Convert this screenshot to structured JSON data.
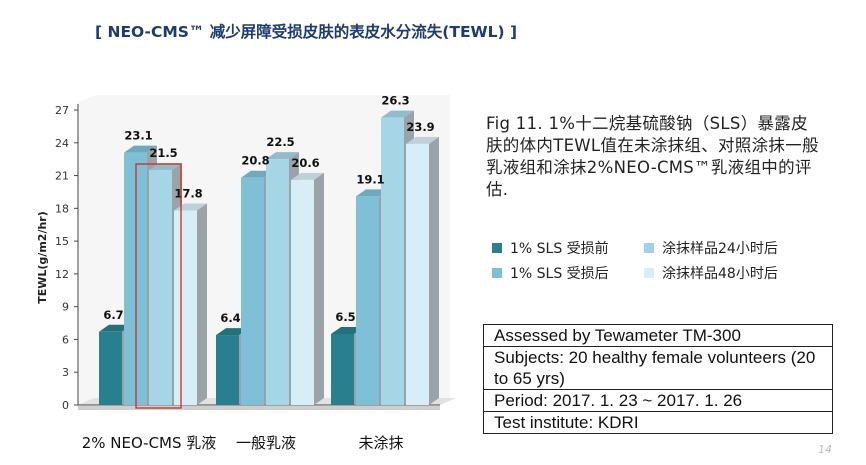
{
  "title": "[ NEO-CMS™ 减少屏障受损皮肤的表皮水分流失(TEWL) ]",
  "caption": "Fig 11. 1%十二烷基硫酸钠（SLS）暴露皮肤的体内TEWL值在未涂抹组、对照涂抹一般乳液组和涂抹2%NEO-CMS™乳液组中的评估.",
  "legend_colors": [
    "#2a7f8e",
    "#9fd3e2",
    "#7fc0d6",
    "#d8eef6"
  ],
  "chart_data": {
    "type": "bar",
    "categories": [
      "2% NEO-CMS 乳液",
      "一般乳液",
      "未涂抹"
    ],
    "series": [
      {
        "name": "1% SLS 受损前",
        "values": [
          6.7,
          6.4,
          6.5
        ],
        "value_labels": [
          "6.7",
          "6.4",
          "6.5"
        ],
        "color": "#2a7f8e"
      },
      {
        "name": "1% SLS 受损后",
        "values": [
          23.1,
          20.8,
          19.1
        ],
        "value_labels": [
          "23.1",
          "20.8",
          "19.1"
        ],
        "color": "#7fc0d6"
      },
      {
        "name": "涂抹样品24小时后",
        "values": [
          21.5,
          22.5,
          26.3
        ],
        "value_labels": [
          "21.5",
          "22.5",
          "26.3"
        ],
        "color": "#a6d6e5"
      },
      {
        "name": "涂抹样品48小时后",
        "values": [
          17.8,
          20.6,
          23.9
        ],
        "value_labels": [
          "17.8",
          "20.6",
          "23.9"
        ],
        "color": "#d8eef6"
      }
    ],
    "ylabel": "TEWL(g/m2/hr)",
    "ylim": [
      0,
      27
    ],
    "yticks": [
      "0",
      "3",
      "6",
      "9",
      "12",
      "15",
      "18",
      "21",
      "24",
      "27"
    ],
    "highlight": "2% NEO-CMS 乳液 · 涂抹样品48小时后"
  },
  "info_table": [
    "Assessed by Tewameter TM-300",
    "Subjects: 20 healthy female volunteers (20 to 65 yrs)",
    "Period: 2017. 1. 23 ~ 2017. 1. 26",
    "Test institute: KDRI"
  ],
  "page_number": "14"
}
